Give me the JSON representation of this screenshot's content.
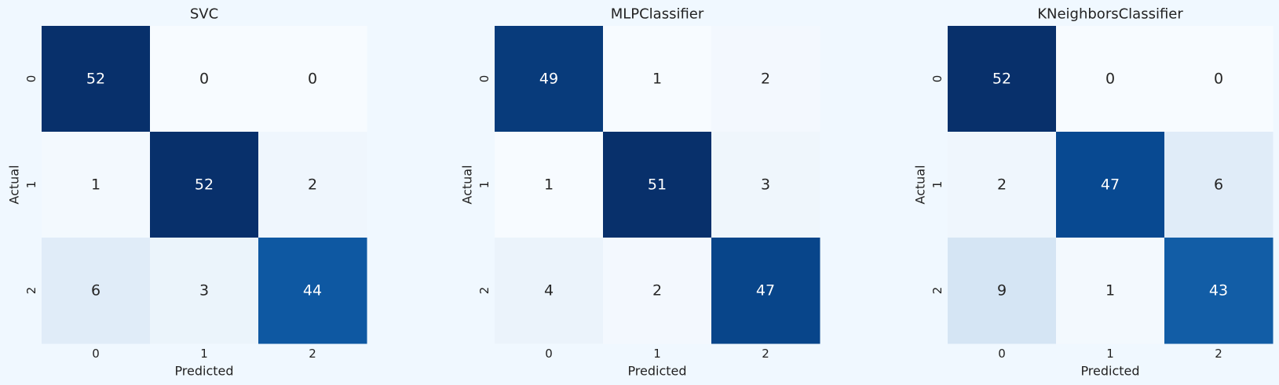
{
  "figure": {
    "background": "#f0f8ff"
  },
  "colormap": [
    "#f7fbff",
    "#deebf7",
    "#c6dbef",
    "#9ecae1",
    "#6baed6",
    "#4292c6",
    "#2171b5",
    "#08519c",
    "#08306b"
  ],
  "chart_data": [
    {
      "type": "heatmap",
      "title": "SVC",
      "xlabel": "Predicted",
      "ylabel": "Actual",
      "x_categories": [
        "0",
        "1",
        "2"
      ],
      "y_categories": [
        "0",
        "1",
        "2"
      ],
      "values": [
        [
          52,
          0,
          0
        ],
        [
          1,
          52,
          2
        ],
        [
          6,
          3,
          44
        ]
      ],
      "colorbar": false,
      "cmap": "Blues"
    },
    {
      "type": "heatmap",
      "title": "MLPClassifier",
      "xlabel": "Predicted",
      "ylabel": "Actual",
      "x_categories": [
        "0",
        "1",
        "2"
      ],
      "y_categories": [
        "0",
        "1",
        "2"
      ],
      "values": [
        [
          49,
          1,
          2
        ],
        [
          1,
          51,
          3
        ],
        [
          4,
          2,
          47
        ]
      ],
      "colorbar": false,
      "cmap": "Blues"
    },
    {
      "type": "heatmap",
      "title": "KNeighborsClassifier",
      "xlabel": "Predicted",
      "ylabel": "Actual",
      "x_categories": [
        "0",
        "1",
        "2"
      ],
      "y_categories": [
        "0",
        "1",
        "2"
      ],
      "values": [
        [
          52,
          0,
          0
        ],
        [
          2,
          47,
          6
        ],
        [
          9,
          1,
          43
        ]
      ],
      "colorbar": false,
      "cmap": "Blues"
    }
  ]
}
